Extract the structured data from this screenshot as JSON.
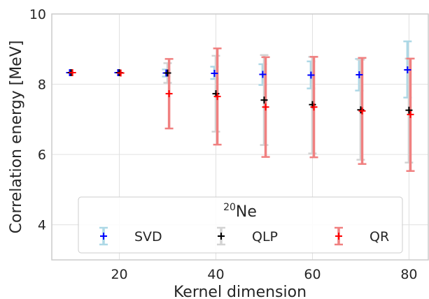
{
  "chart_data": {
    "type": "scatter",
    "xlabel": "Kernel dimension",
    "ylabel": "Correlation energy [MeV]",
    "xlim": [
      6,
      84
    ],
    "ylim": [
      3,
      10
    ],
    "xticks": [
      20,
      40,
      60,
      80
    ],
    "yticks": [
      4,
      6,
      8,
      10
    ],
    "grid": true,
    "legend": {
      "title_main": "Ne",
      "title_sup": "20",
      "placement": "bottom-center"
    },
    "series": [
      {
        "name": "SVD",
        "marker_color": "#0000ff",
        "errorbar_color": "#add8e6",
        "points": [
          {
            "x": 9.7,
            "y": 8.33,
            "lo": 8.33,
            "hi": 8.33
          },
          {
            "x": 19.7,
            "y": 8.33,
            "lo": 8.33,
            "hi": 8.33
          },
          {
            "x": 29.7,
            "y": 8.32,
            "lo": 8.22,
            "hi": 8.42
          },
          {
            "x": 39.7,
            "y": 8.31,
            "lo": 8.15,
            "hi": 8.5
          },
          {
            "x": 49.7,
            "y": 8.28,
            "lo": 7.98,
            "hi": 8.57
          },
          {
            "x": 59.7,
            "y": 8.26,
            "lo": 7.88,
            "hi": 8.65
          },
          {
            "x": 69.7,
            "y": 8.27,
            "lo": 7.82,
            "hi": 8.72
          },
          {
            "x": 79.7,
            "y": 8.41,
            "lo": 7.62,
            "hi": 9.22
          }
        ]
      },
      {
        "name": "QLP",
        "marker_color": "#000000",
        "errorbar_color": "#d3d3d3",
        "points": [
          {
            "x": 10.0,
            "y": 8.33,
            "lo": 8.33,
            "hi": 8.33
          },
          {
            "x": 20.0,
            "y": 8.33,
            "lo": 8.33,
            "hi": 8.33
          },
          {
            "x": 30.0,
            "y": 8.32,
            "lo": 8.04,
            "hi": 8.6
          },
          {
            "x": 40.0,
            "y": 7.73,
            "lo": 6.65,
            "hi": 8.81
          },
          {
            "x": 50.0,
            "y": 7.55,
            "lo": 6.27,
            "hi": 8.83
          },
          {
            "x": 60.0,
            "y": 7.42,
            "lo": 6.03,
            "hi": 8.78
          },
          {
            "x": 70.0,
            "y": 7.27,
            "lo": 5.85,
            "hi": 8.7
          },
          {
            "x": 80.0,
            "y": 7.26,
            "lo": 5.77,
            "hi": 8.73
          }
        ]
      },
      {
        "name": "QR",
        "marker_color": "#ff0000",
        "errorbar_color": "#f08080",
        "points": [
          {
            "x": 10.3,
            "y": 8.33,
            "lo": 8.33,
            "hi": 8.33
          },
          {
            "x": 20.3,
            "y": 8.32,
            "lo": 8.32,
            "hi": 8.32
          },
          {
            "x": 30.3,
            "y": 7.73,
            "lo": 6.74,
            "hi": 8.72
          },
          {
            "x": 40.3,
            "y": 7.65,
            "lo": 6.28,
            "hi": 9.02
          },
          {
            "x": 50.3,
            "y": 7.35,
            "lo": 5.93,
            "hi": 8.77
          },
          {
            "x": 60.3,
            "y": 7.35,
            "lo": 5.92,
            "hi": 8.78
          },
          {
            "x": 70.3,
            "y": 7.24,
            "lo": 5.73,
            "hi": 8.75
          },
          {
            "x": 80.3,
            "y": 7.14,
            "lo": 5.53,
            "hi": 8.73
          }
        ]
      }
    ]
  }
}
